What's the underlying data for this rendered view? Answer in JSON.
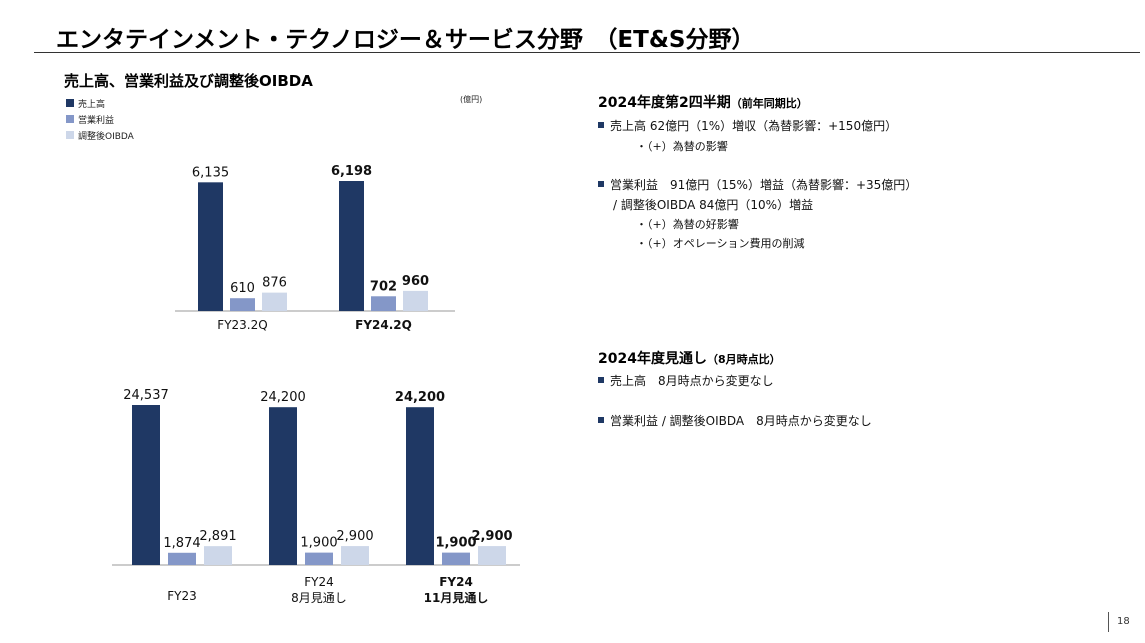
{
  "page_title": "エンタテインメント・テクノロジー＆サービス分野　（ET&S分野）",
  "chart_section_title": "売上高、営業利益及び調整後OIBDA",
  "unit_label": "(億円)",
  "colors": {
    "sales": "#1f3864",
    "operating_income": "#8497c8",
    "oibda": "#cdd7e9"
  },
  "chart_data": [
    {
      "type": "bar",
      "categories": [
        "FY23.2Q",
        "FY24.2Q"
      ],
      "category_bold": [
        false,
        true
      ],
      "series": [
        {
          "name": "売上高",
          "values": [
            6135,
            6198
          ],
          "labels": [
            "6,135",
            "6,198"
          ]
        },
        {
          "name": "営業利益",
          "values": [
            610,
            702
          ],
          "labels": [
            "610",
            "702"
          ]
        },
        {
          "name": "調整後OIBDA",
          "values": [
            876,
            960
          ],
          "labels": [
            "876",
            "960"
          ]
        }
      ],
      "legend": "top-left"
    },
    {
      "type": "bar",
      "categories": [
        "FY23",
        "FY24\n8月見通し",
        "FY24\n11月見通し"
      ],
      "category_bold": [
        false,
        false,
        true
      ],
      "series": [
        {
          "name": "売上高",
          "values": [
            24537,
            24200,
            24200
          ],
          "labels": [
            "24,537",
            "24,200",
            "24,200"
          ]
        },
        {
          "name": "営業利益",
          "values": [
            1874,
            1900,
            1900
          ],
          "labels": [
            "1,874",
            "1,900",
            "1,900"
          ]
        },
        {
          "name": "調整後OIBDA",
          "values": [
            2891,
            2900,
            2900
          ],
          "labels": [
            "2,891",
            "2,900",
            "2,900"
          ]
        }
      ]
    }
  ],
  "right": {
    "q2": {
      "title": "2024年度第2四半期",
      "note": "（前年同期比）",
      "b1": "売上高 62億円（1%）増収（為替影響：+150億円）",
      "b1_sub1": "・（+）為替の影響",
      "b2": "営業利益　91億円（15%）増益（為替影響：+35億円）",
      "b2_line2": "/ 調整後OIBDA 84億円（10%）増益",
      "b2_sub1": "・（+）為替の好影響",
      "b2_sub2": "・（+）オペレーション費用の削減"
    },
    "outlook": {
      "title": "2024年度見通し",
      "note": "（8月時点比）",
      "b1": "売上高　8月時点から変更なし",
      "b2": "営業利益 / 調整後OIBDA　8月時点から変更なし"
    }
  },
  "page_number": "18"
}
